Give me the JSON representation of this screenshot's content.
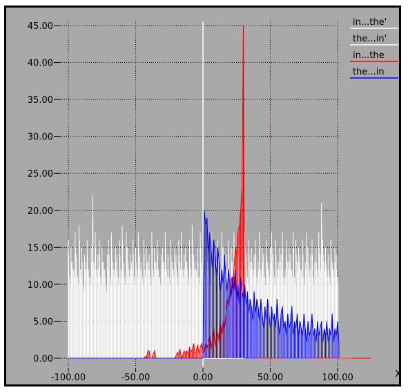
{
  "chart_data": {
    "type": "bar",
    "title": "",
    "xlabel": "X",
    "ylabel": "",
    "xlim": [
      -100,
      100
    ],
    "ylim": [
      0,
      45
    ],
    "x_ticks": [
      "-100.00",
      "-50.00",
      "0.00",
      "50.00",
      "100.00"
    ],
    "y_ticks": [
      "0.00",
      "5.00",
      "10.00",
      "15.00",
      "20.00",
      "25.00",
      "30.00",
      "35.00",
      "40.00",
      "45.00"
    ],
    "grid": true,
    "legend_position": "top-right",
    "series": [
      {
        "name": "in...the'",
        "color": "#ffffff",
        "x_start": -100,
        "values": [
          16,
          11,
          15,
          13,
          12,
          17,
          14,
          11,
          18,
          12,
          15,
          10,
          14,
          13,
          16,
          12,
          11,
          15,
          22,
          13,
          17,
          12,
          14,
          16,
          11,
          15,
          13,
          12,
          10,
          14,
          16,
          11,
          17,
          13,
          12,
          15,
          14,
          11,
          16,
          12,
          18,
          13,
          11,
          17,
          15,
          12,
          14,
          13,
          16,
          11,
          15,
          12,
          17,
          14,
          13,
          11,
          16,
          12,
          15,
          13,
          14,
          11,
          17,
          12,
          15,
          13,
          16,
          12,
          11,
          14,
          15,
          13,
          17,
          12,
          14,
          11,
          16,
          13,
          12,
          15,
          14,
          11,
          16,
          13,
          17,
          12,
          14,
          15,
          13,
          11,
          16,
          12,
          18,
          14,
          13,
          12,
          15,
          11,
          17,
          13,
          16,
          12,
          14,
          15,
          13,
          11,
          17,
          12,
          15,
          14,
          13,
          16,
          11,
          12,
          17,
          15,
          13,
          14,
          12,
          16,
          11,
          15,
          13,
          17,
          12,
          14,
          16,
          11,
          13,
          15,
          12,
          17,
          14,
          11,
          16,
          13,
          15,
          12,
          14,
          16,
          11,
          13,
          17,
          12,
          15,
          14,
          11,
          16,
          13,
          12,
          15,
          17,
          14,
          11,
          16,
          12,
          13,
          15,
          14,
          17,
          11,
          12,
          16,
          13,
          15,
          14,
          12,
          17,
          11,
          16,
          13,
          15,
          14,
          12,
          16,
          11,
          13,
          17,
          15,
          12,
          14,
          16,
          11,
          13,
          15,
          12,
          17,
          14,
          21,
          16,
          13,
          15,
          12,
          14,
          11,
          16,
          13,
          12,
          15,
          14,
          11
        ]
      },
      {
        "name": "the...in'",
        "color": "#ffffff",
        "x_start": -100,
        "values": [
          14,
          10,
          13,
          12,
          11,
          15,
          12,
          10,
          16,
          11,
          13,
          9,
          12,
          12,
          14,
          11,
          10,
          13,
          19,
          12,
          15,
          11,
          12,
          14,
          10,
          13,
          12,
          11,
          9,
          12,
          14,
          10,
          15,
          12,
          11,
          13,
          12,
          10,
          14,
          11,
          16,
          12,
          10,
          15,
          13,
          11,
          12,
          12,
          14,
          10,
          13,
          11,
          15,
          12,
          12,
          10,
          14,
          11,
          13,
          12,
          12,
          10,
          15,
          11,
          13,
          12,
          14,
          11,
          10,
          12,
          13,
          12,
          15,
          11,
          12,
          10,
          14,
          12,
          11,
          13,
          12,
          10,
          14,
          12,
          15,
          11,
          12,
          13,
          12,
          10,
          14,
          11,
          16,
          12,
          12,
          11,
          13,
          10,
          15,
          12,
          14,
          11,
          12,
          13,
          12,
          10,
          15,
          11,
          13,
          12,
          12,
          14,
          10,
          11,
          15,
          13,
          12,
          12,
          11,
          14,
          10,
          13,
          12,
          15,
          11,
          12,
          14,
          10,
          12,
          13,
          11,
          15,
          12,
          10,
          14,
          12,
          13,
          11,
          12,
          14,
          10,
          12,
          15,
          11,
          13,
          12,
          10,
          14,
          12,
          11,
          13,
          15,
          12,
          10,
          14,
          11,
          12,
          13,
          12,
          15,
          10,
          11,
          14,
          12,
          13,
          12,
          11,
          15,
          10,
          14,
          12,
          13,
          12,
          11,
          14,
          10,
          12,
          15,
          13,
          11,
          12,
          14,
          10,
          12,
          13,
          11,
          15,
          12,
          18,
          14,
          12,
          13,
          11,
          12,
          10,
          14,
          12,
          11,
          13,
          12,
          10
        ]
      },
      {
        "name": "in...the",
        "color": "#ff0000",
        "x_start": -100,
        "values": [
          0,
          0,
          0,
          0,
          0,
          0,
          0,
          0,
          0,
          0,
          0,
          0,
          0,
          0,
          0,
          0,
          0,
          0,
          0,
          0,
          0,
          0,
          0,
          0,
          0,
          0,
          0,
          0,
          0,
          0,
          0,
          0,
          0,
          0,
          0,
          0,
          0,
          0,
          0,
          0,
          0,
          0,
          0,
          0,
          0,
          0,
          0,
          0,
          0,
          0,
          0,
          0,
          0,
          0,
          0,
          0,
          0,
          0.2,
          0,
          1,
          1,
          0,
          0,
          0.5,
          1,
          0,
          0,
          0,
          0,
          0,
          0,
          0,
          0,
          0,
          0,
          0,
          0,
          0,
          0,
          0,
          0.3,
          0.8,
          0.5,
          1.2,
          0,
          0.4,
          1,
          0.6,
          1,
          0.5,
          1.5,
          0.8,
          1.2,
          2,
          0.5,
          1,
          1.8,
          0.6,
          1.5,
          2,
          1,
          0.7,
          2,
          1.3,
          2,
          3,
          1,
          2.5,
          4,
          1.5,
          2.8,
          3.5,
          2,
          4.6,
          3,
          5,
          4,
          6,
          8,
          7,
          9,
          11,
          10,
          12,
          15,
          14,
          17,
          18,
          20,
          23,
          45,
          0,
          0,
          0,
          0,
          0,
          0,
          0,
          0,
          0,
          0,
          0,
          0,
          0,
          0,
          0,
          0,
          0,
          0,
          0,
          0,
          0,
          0,
          0,
          0,
          0,
          0,
          0,
          0,
          0,
          0,
          0,
          0,
          0,
          0,
          0,
          0,
          0,
          0,
          0,
          0,
          0,
          0,
          0,
          0,
          0,
          0,
          0,
          0,
          0,
          0,
          0,
          0,
          0,
          0,
          0,
          0,
          0,
          0,
          0,
          0,
          0,
          0,
          0,
          0,
          0,
          0,
          0,
          0,
          0,
          0,
          0,
          0,
          0,
          0,
          0,
          0,
          0,
          0,
          0,
          0,
          0,
          0,
          0,
          0,
          0,
          0,
          0,
          0,
          0,
          0,
          0,
          0,
          0,
          0,
          0
        ]
      },
      {
        "name": "the...in",
        "color": "#0000ff",
        "x_start": -100,
        "values": [
          0,
          0,
          0,
          0,
          0,
          0,
          0,
          0,
          0,
          0,
          0,
          0,
          0,
          0,
          0,
          0,
          0,
          0,
          0,
          0,
          0,
          0,
          0,
          0,
          0,
          0,
          0,
          0,
          0,
          0,
          0,
          0,
          0,
          0,
          0,
          0,
          0,
          0,
          0,
          0,
          0,
          0,
          0,
          0,
          0,
          0,
          0,
          0,
          0,
          0,
          0,
          0,
          0,
          0,
          0,
          0,
          0,
          0,
          0,
          0,
          0,
          0,
          0,
          0,
          0,
          0,
          0,
          0,
          0,
          0,
          0,
          0,
          0,
          0,
          0,
          0,
          0,
          0,
          0,
          0,
          0,
          0,
          0,
          0,
          0,
          0,
          0,
          0,
          0,
          0,
          0,
          0,
          0,
          0,
          0,
          0,
          0,
          0,
          0,
          0,
          0,
          20,
          18,
          19,
          14,
          17,
          15,
          12,
          16,
          14,
          11,
          15,
          13,
          9,
          12,
          10,
          14,
          11,
          9,
          12,
          10,
          8,
          11,
          9,
          12,
          8,
          10,
          7,
          11,
          9,
          8,
          10,
          7,
          9,
          6,
          8,
          7,
          5,
          9,
          6,
          8,
          7,
          5,
          8,
          6,
          4,
          7,
          5,
          8,
          6,
          4,
          7,
          5,
          6,
          4,
          8,
          5,
          3,
          6,
          7,
          4,
          5,
          3,
          6,
          4,
          5,
          7,
          3,
          5,
          4,
          6,
          3,
          5,
          4,
          3,
          6,
          4,
          2,
          5,
          3,
          4,
          6,
          3,
          4,
          2,
          5,
          3,
          4,
          5,
          2,
          4,
          3,
          5,
          2,
          4,
          3,
          6,
          2,
          4,
          3,
          5,
          2
        ]
      }
    ]
  }
}
